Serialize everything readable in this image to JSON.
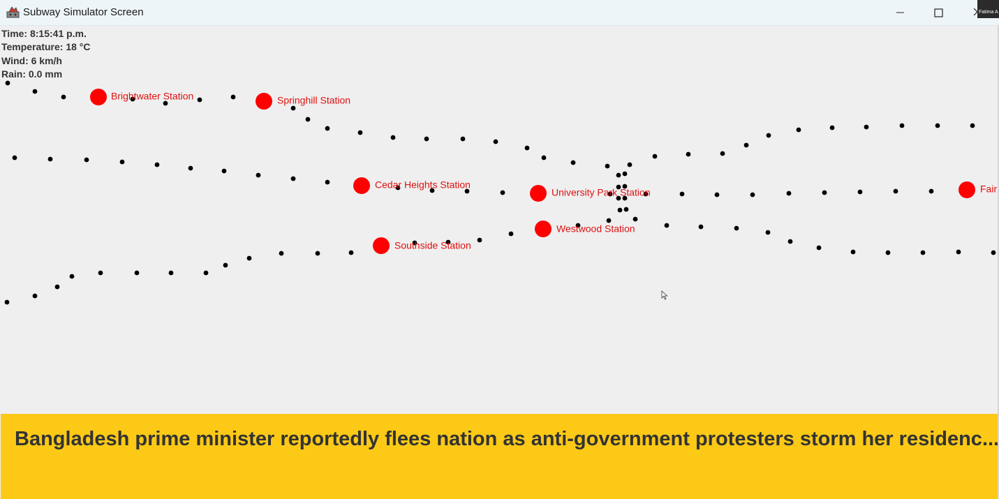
{
  "window": {
    "title": "Subway Simulator Screen",
    "user_tile_label": "Fatima A"
  },
  "controls": {
    "icons": [
      "minimize-icon",
      "maximize-icon",
      "close-icon"
    ]
  },
  "info": {
    "time": "Time: 8:15:41 p.m.",
    "temperature": "Temperature: 18 °C",
    "wind": "Wind: 6 km/h",
    "rain": "Rain: 0.0 mm"
  },
  "stations": [
    {
      "name": "Brightwater Station"
    },
    {
      "name": "Springhill Station"
    },
    {
      "name": "Cedar Heights Station"
    },
    {
      "name": "University Park Station"
    },
    {
      "name": "Westwood Station"
    },
    {
      "name": "Southside Station"
    },
    {
      "name": "Fair"
    }
  ],
  "news": {
    "headline": "Bangladesh prime minister reportedly flees nation as anti-government protesters storm her residenc..."
  },
  "colors": {
    "station": "#ff0000",
    "station_label": "#e01010",
    "track_dot": "#000000",
    "banner": "#fcc916",
    "headline_text": "#333333"
  }
}
